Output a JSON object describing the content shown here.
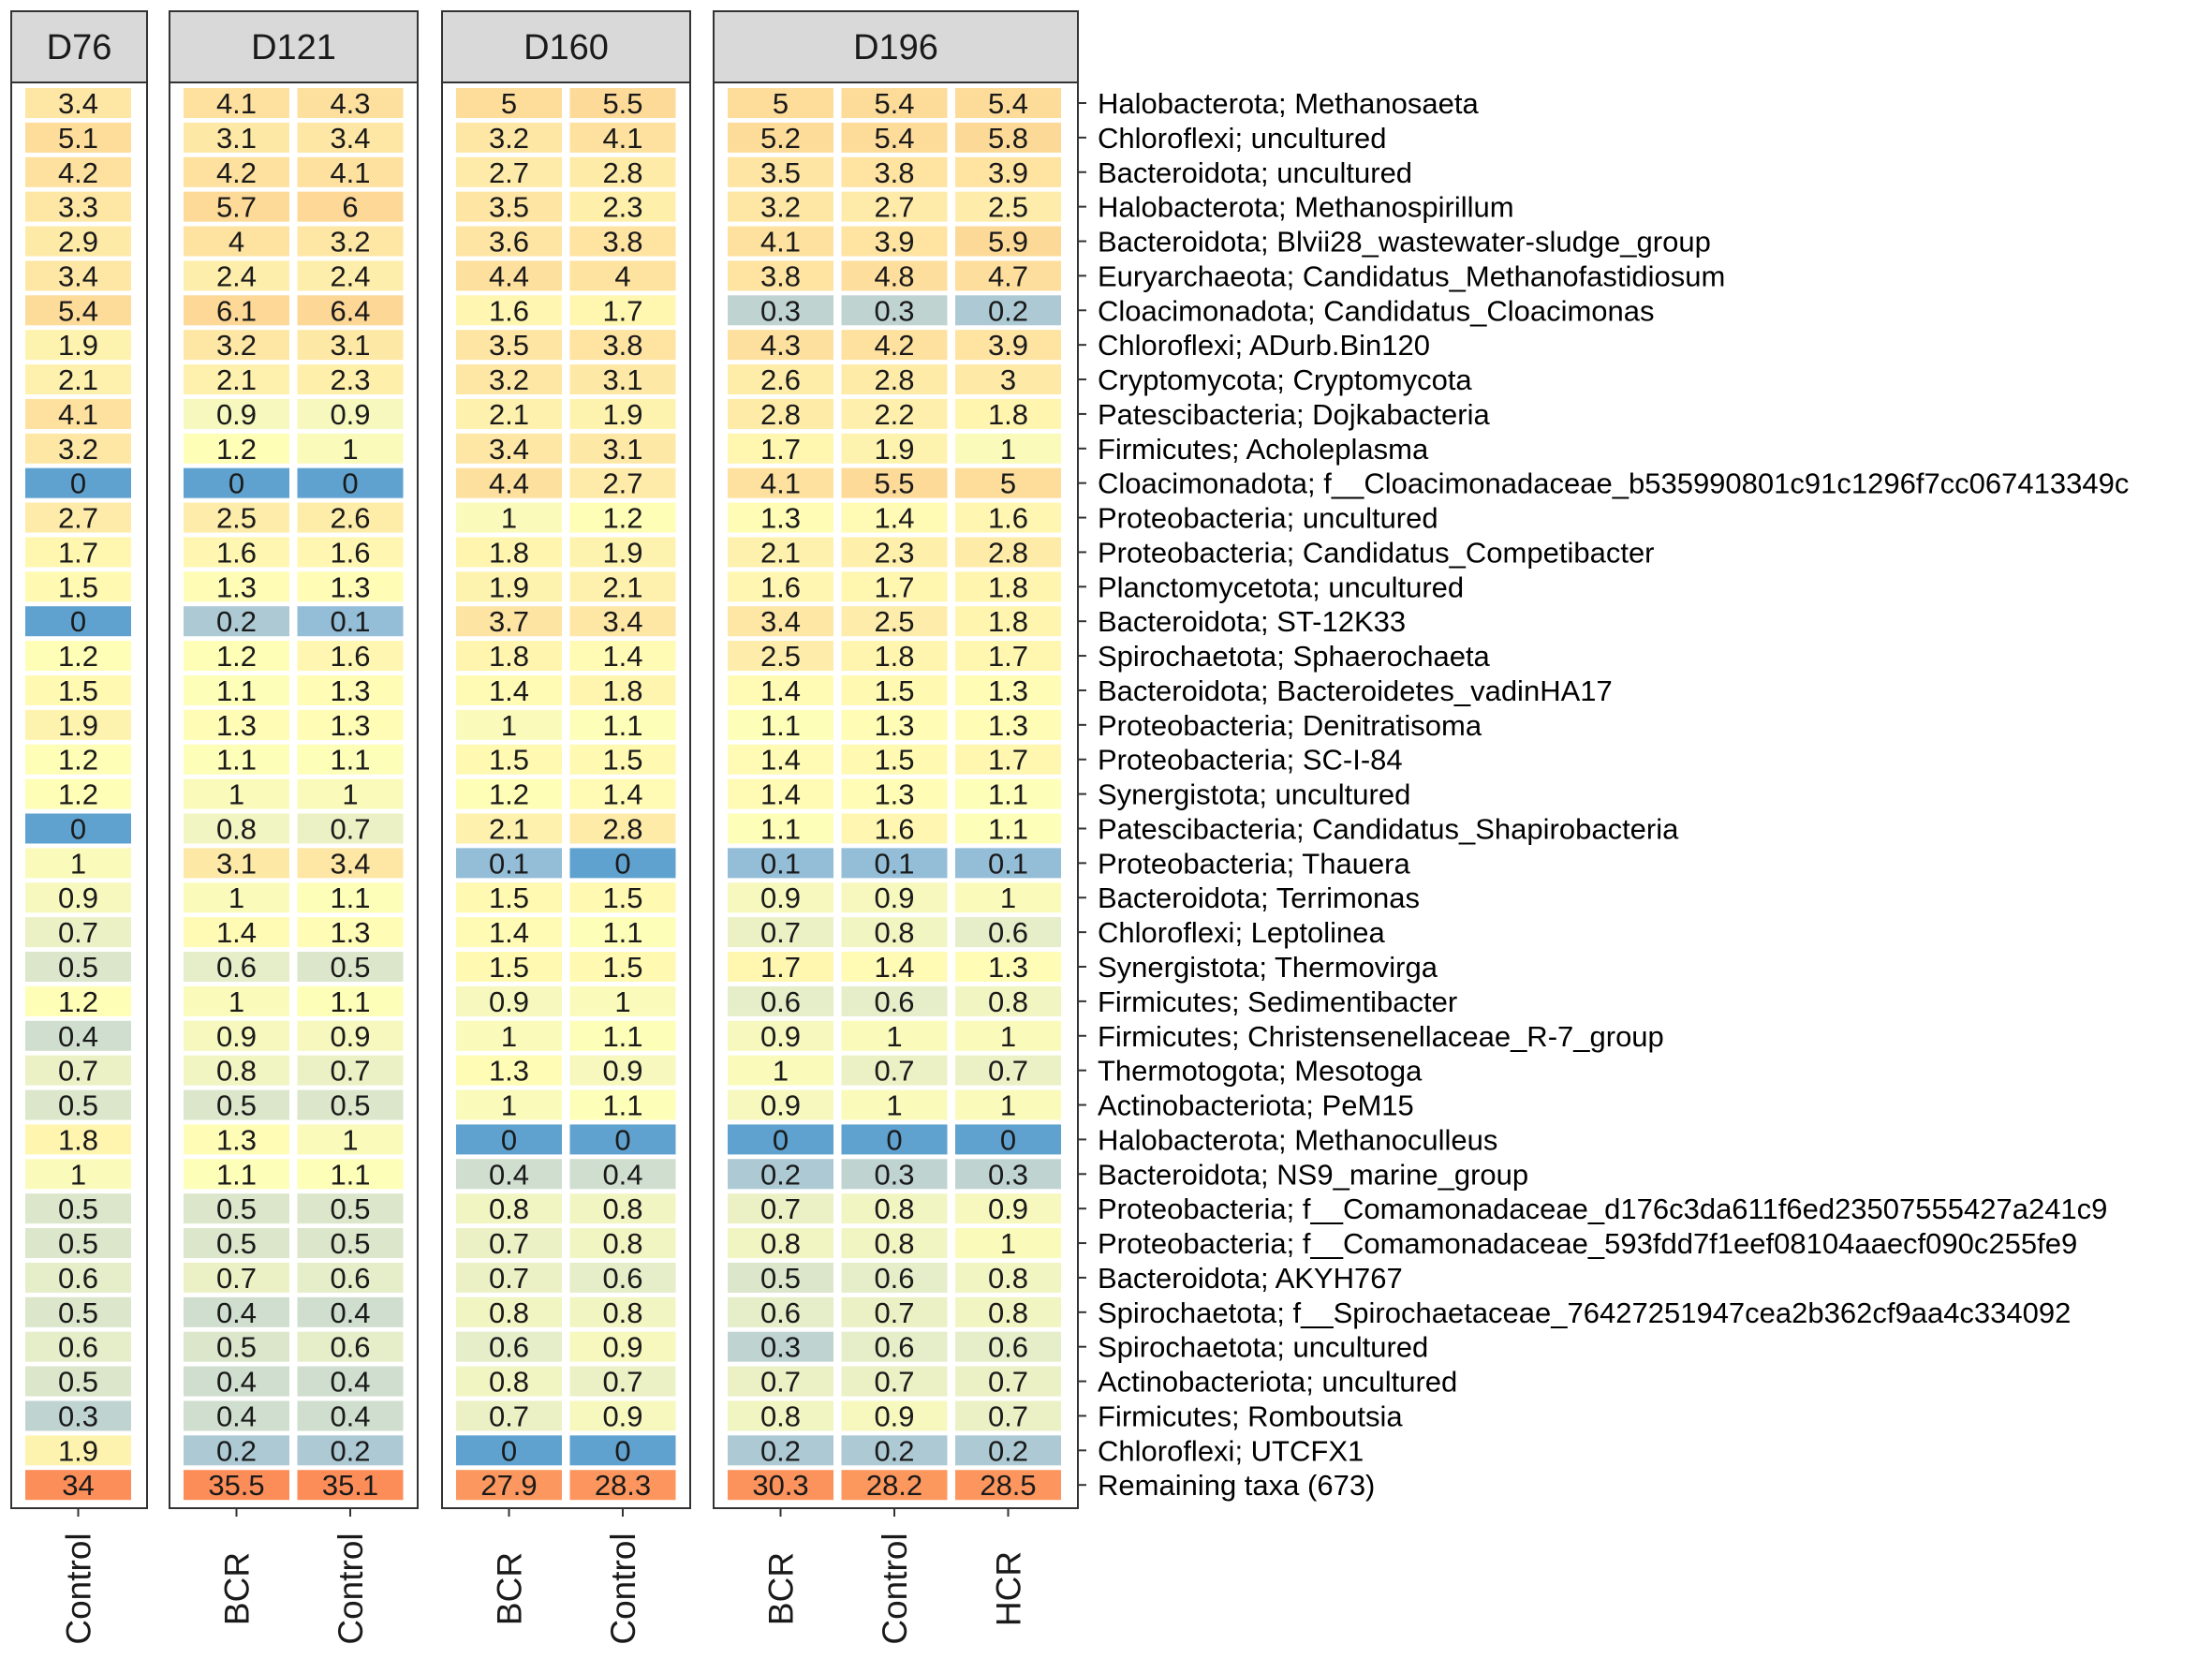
{
  "chart_data": {
    "type": "heatmap",
    "panels": [
      {
        "name": "D76",
        "columns": [
          "Control"
        ]
      },
      {
        "name": "D121",
        "columns": [
          "BCR",
          "Control"
        ]
      },
      {
        "name": "D160",
        "columns": [
          "BCR",
          "Control"
        ]
      },
      {
        "name": "D196",
        "columns": [
          "BCR",
          "Control",
          "HCR"
        ]
      }
    ],
    "rows": [
      "Halobacterota; Methanosaeta",
      "Chloroflexi; uncultured",
      "Bacteroidota; uncultured",
      "Halobacterota; Methanospirillum",
      "Bacteroidota; Blvii28_wastewater-sludge_group",
      "Euryarchaeota; Candidatus_Methanofastidiosum",
      "Cloacimonadota; Candidatus_Cloacimonas",
      "Chloroflexi; ADurb.Bin120",
      "Cryptomycota; Cryptomycota",
      "Patescibacteria; Dojkabacteria",
      "Firmicutes; Acholeplasma",
      "Cloacimonadota; f__Cloacimonadaceae_b535990801c91c1296f7cc067413349c",
      "Proteobacteria; uncultured",
      "Proteobacteria; Candidatus_Competibacter",
      "Planctomycetota; uncultured",
      "Bacteroidota; ST-12K33",
      "Spirochaetota; Sphaerochaeta",
      "Bacteroidota; Bacteroidetes_vadinHA17",
      "Proteobacteria; Denitratisoma",
      "Proteobacteria; SC-I-84",
      "Synergistota; uncultured",
      "Patescibacteria; Candidatus_Shapirobacteria",
      "Proteobacteria; Thauera",
      "Bacteroidota; Terrimonas",
      "Chloroflexi; Leptolinea",
      "Synergistota; Thermovirga",
      "Firmicutes; Sedimentibacter",
      "Firmicutes; Christensenellaceae_R-7_group",
      "Thermotogota; Mesotoga",
      "Actinobacteriota; PeM15",
      "Halobacterota; Methanoculleus",
      "Bacteroidota; NS9_marine_group",
      "Proteobacteria; f__Comamonadaceae_d176c3da611f6ed23507555427a241c9",
      "Proteobacteria; f__Comamonadaceae_593fdd7f1eef08104aaecf090c255fe9",
      "Bacteroidota; AKYH767",
      "Spirochaetota; f__Spirochaetaceae_76427251947cea2b362cf9aa4c334092",
      "Spirochaetota; uncultured",
      "Actinobacteriota; uncultured",
      "Firmicutes; Romboutsia",
      "Chloroflexi; UTCFX1",
      "Remaining taxa (673)"
    ],
    "values": [
      [
        "3.4",
        "4.1",
        "4.3",
        "5",
        "5.5",
        "5",
        "5.4",
        "5.4"
      ],
      [
        "5.1",
        "3.1",
        "3.4",
        "3.2",
        "4.1",
        "5.2",
        "5.4",
        "5.8"
      ],
      [
        "4.2",
        "4.2",
        "4.1",
        "2.7",
        "2.8",
        "3.5",
        "3.8",
        "3.9"
      ],
      [
        "3.3",
        "5.7",
        "6",
        "3.5",
        "2.3",
        "3.2",
        "2.7",
        "2.5"
      ],
      [
        "2.9",
        "4",
        "3.2",
        "3.6",
        "3.8",
        "4.1",
        "3.9",
        "5.9"
      ],
      [
        "3.4",
        "2.4",
        "2.4",
        "4.4",
        "4",
        "3.8",
        "4.8",
        "4.7"
      ],
      [
        "5.4",
        "6.1",
        "6.4",
        "1.6",
        "1.7",
        "0.3",
        "0.3",
        "0.2"
      ],
      [
        "1.9",
        "3.2",
        "3.1",
        "3.5",
        "3.8",
        "4.3",
        "4.2",
        "3.9"
      ],
      [
        "2.1",
        "2.1",
        "2.3",
        "3.2",
        "3.1",
        "2.6",
        "2.8",
        "3"
      ],
      [
        "4.1",
        "0.9",
        "0.9",
        "2.1",
        "1.9",
        "2.8",
        "2.2",
        "1.8"
      ],
      [
        "3.2",
        "1.2",
        "1",
        "3.4",
        "3.1",
        "1.7",
        "1.9",
        "1"
      ],
      [
        "0",
        "0",
        "0",
        "4.4",
        "2.7",
        "4.1",
        "5.5",
        "5"
      ],
      [
        "2.7",
        "2.5",
        "2.6",
        "1",
        "1.2",
        "1.3",
        "1.4",
        "1.6"
      ],
      [
        "1.7",
        "1.6",
        "1.6",
        "1.8",
        "1.9",
        "2.1",
        "2.3",
        "2.8"
      ],
      [
        "1.5",
        "1.3",
        "1.3",
        "1.9",
        "2.1",
        "1.6",
        "1.7",
        "1.8"
      ],
      [
        "0",
        "0.2",
        "0.1",
        "3.7",
        "3.4",
        "3.4",
        "2.5",
        "1.8"
      ],
      [
        "1.2",
        "1.2",
        "1.6",
        "1.8",
        "1.4",
        "2.5",
        "1.8",
        "1.7"
      ],
      [
        "1.5",
        "1.1",
        "1.3",
        "1.4",
        "1.8",
        "1.4",
        "1.5",
        "1.3"
      ],
      [
        "1.9",
        "1.3",
        "1.3",
        "1",
        "1.1",
        "1.1",
        "1.3",
        "1.3"
      ],
      [
        "1.2",
        "1.1",
        "1.1",
        "1.5",
        "1.5",
        "1.4",
        "1.5",
        "1.7"
      ],
      [
        "1.2",
        "1",
        "1",
        "1.2",
        "1.4",
        "1.4",
        "1.3",
        "1.1"
      ],
      [
        "0",
        "0.8",
        "0.7",
        "2.1",
        "2.8",
        "1.1",
        "1.6",
        "1.1"
      ],
      [
        "1",
        "3.1",
        "3.4",
        "0.1",
        "0",
        "0.1",
        "0.1",
        "0.1"
      ],
      [
        "0.9",
        "1",
        "1.1",
        "1.5",
        "1.5",
        "0.9",
        "0.9",
        "1"
      ],
      [
        "0.7",
        "1.4",
        "1.3",
        "1.4",
        "1.1",
        "0.7",
        "0.8",
        "0.6"
      ],
      [
        "0.5",
        "0.6",
        "0.5",
        "1.5",
        "1.5",
        "1.7",
        "1.4",
        "1.3"
      ],
      [
        "1.2",
        "1",
        "1.1",
        "0.9",
        "1",
        "0.6",
        "0.6",
        "0.8"
      ],
      [
        "0.4",
        "0.9",
        "0.9",
        "1",
        "1.1",
        "0.9",
        "1",
        "1"
      ],
      [
        "0.7",
        "0.8",
        "0.7",
        "1.3",
        "0.9",
        "1",
        "0.7",
        "0.7"
      ],
      [
        "0.5",
        "0.5",
        "0.5",
        "1",
        "1.1",
        "0.9",
        "1",
        "1"
      ],
      [
        "1.8",
        "1.3",
        "1",
        "0",
        "0",
        "0",
        "0",
        "0"
      ],
      [
        "1",
        "1.1",
        "1.1",
        "0.4",
        "0.4",
        "0.2",
        "0.3",
        "0.3"
      ],
      [
        "0.5",
        "0.5",
        "0.5",
        "0.8",
        "0.8",
        "0.7",
        "0.8",
        "0.9"
      ],
      [
        "0.5",
        "0.5",
        "0.5",
        "0.7",
        "0.8",
        "0.8",
        "0.8",
        "1"
      ],
      [
        "0.6",
        "0.7",
        "0.6",
        "0.7",
        "0.6",
        "0.5",
        "0.6",
        "0.8"
      ],
      [
        "0.5",
        "0.4",
        "0.4",
        "0.8",
        "0.8",
        "0.6",
        "0.7",
        "0.8"
      ],
      [
        "0.6",
        "0.5",
        "0.6",
        "0.6",
        "0.9",
        "0.3",
        "0.6",
        "0.6"
      ],
      [
        "0.5",
        "0.4",
        "0.4",
        "0.8",
        "0.7",
        "0.7",
        "0.7",
        "0.7"
      ],
      [
        "0.3",
        "0.4",
        "0.4",
        "0.7",
        "0.9",
        "0.8",
        "0.9",
        "0.7"
      ],
      [
        "1.9",
        "0.2",
        "0.2",
        "0",
        "0",
        "0.2",
        "0.2",
        "0.2"
      ],
      [
        "34",
        "35.5",
        "35.1",
        "27.9",
        "28.3",
        "30.3",
        "28.2",
        "28.5"
      ]
    ],
    "color_scale": {
      "type": "log-diverging",
      "low": "#5fa2cf",
      "mid_low": "#e9efc8",
      "mid": "#ffffb7",
      "high": "#fdae6b",
      "top": "#fc8d59"
    }
  }
}
